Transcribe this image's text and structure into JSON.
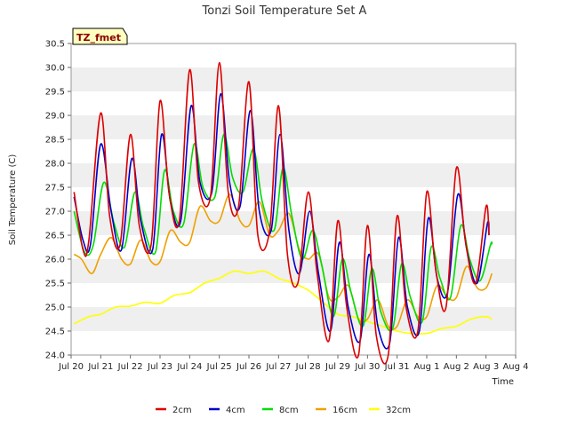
{
  "chart_data": {
    "type": "line",
    "title": "Tonzi Soil Temperature Set A",
    "xlabel": "Time",
    "ylabel": "Soil Temperature (C)",
    "tag": "TZ_fmet",
    "xlim": [
      0,
      15
    ],
    "ylim": [
      24.0,
      30.5
    ],
    "x_ticks": [
      0,
      1,
      2,
      3,
      4,
      5,
      6,
      7,
      8,
      9,
      10,
      11,
      12,
      13,
      14,
      15
    ],
    "x_tick_labels": [
      "Jul 20",
      "Jul 21",
      "Jul 22",
      "Jul 23",
      "Jul 24",
      "Jul 25",
      "Jul 26",
      "Jul 27",
      "Jul 28",
      "Jul 29",
      "Jul 30",
      "Jul 31",
      "Aug 1",
      "Aug 2",
      "Aug 3",
      "Aug 4"
    ],
    "y_ticks": [
      24.0,
      24.5,
      25.0,
      25.5,
      26.0,
      26.5,
      27.0,
      27.5,
      28.0,
      28.5,
      29.0,
      29.5,
      30.0,
      30.5
    ],
    "y_tick_labels": [
      "24.0",
      "24.5",
      "25.0",
      "25.5",
      "26.0",
      "26.5",
      "27.0",
      "27.5",
      "28.0",
      "28.5",
      "29.0",
      "29.5",
      "30.0",
      "30.5"
    ],
    "grid": "horizontal bands",
    "legend_position": "bottom",
    "series": [
      {
        "name": "2cm",
        "color": "#dd0000",
        "x": [
          0.1,
          0.4,
          0.6,
          1.0,
          1.3,
          1.65,
          2.0,
          2.3,
          2.7,
          3.0,
          3.3,
          3.65,
          4.0,
          4.3,
          4.7,
          5.0,
          5.3,
          5.65,
          6.0,
          6.3,
          6.7,
          7.0,
          7.3,
          7.65,
          8.0,
          8.3,
          8.7,
          9.0,
          9.3,
          9.7,
          10.0,
          10.3,
          10.7,
          11.0,
          11.3,
          11.7,
          12.0,
          12.3,
          12.65,
          13.0,
          13.3,
          13.65,
          14.0,
          14.1
        ],
        "y": [
          27.4,
          26.2,
          26.4,
          29.05,
          26.9,
          26.3,
          28.6,
          26.7,
          26.3,
          29.3,
          27.4,
          26.8,
          29.95,
          27.6,
          27.3,
          30.1,
          27.4,
          27.1,
          29.7,
          26.5,
          26.6,
          29.2,
          26.1,
          25.5,
          27.4,
          25.7,
          24.3,
          26.8,
          25.0,
          24.0,
          26.7,
          24.4,
          24.0,
          26.9,
          25.0,
          24.5,
          27.4,
          25.8,
          25.0,
          27.9,
          26.4,
          25.5,
          27.1,
          26.5
        ]
      },
      {
        "name": "4cm",
        "color": "#0000cc",
        "x": [
          0.1,
          0.4,
          0.65,
          1.0,
          1.35,
          1.7,
          2.05,
          2.35,
          2.75,
          3.05,
          3.35,
          3.7,
          4.05,
          4.35,
          4.75,
          5.05,
          5.35,
          5.7,
          6.05,
          6.35,
          6.75,
          7.05,
          7.35,
          7.7,
          8.05,
          8.35,
          8.75,
          9.05,
          9.35,
          9.75,
          10.05,
          10.35,
          10.75,
          11.05,
          11.35,
          11.75,
          12.05,
          12.35,
          12.7,
          13.05,
          13.35,
          13.7,
          14.05,
          14.1
        ],
        "y": [
          27.3,
          26.4,
          26.3,
          28.4,
          27.0,
          26.2,
          28.1,
          26.8,
          26.2,
          28.6,
          27.2,
          26.8,
          29.2,
          27.6,
          27.4,
          29.45,
          27.6,
          27.1,
          29.1,
          27.0,
          26.6,
          28.6,
          26.6,
          25.7,
          27.0,
          25.7,
          24.5,
          26.35,
          25.0,
          24.3,
          26.1,
          24.6,
          24.25,
          26.45,
          25.0,
          24.5,
          26.85,
          25.6,
          25.3,
          27.35,
          26.2,
          25.5,
          26.75,
          26.5
        ]
      },
      {
        "name": "8cm",
        "color": "#00dd00",
        "x": [
          0.1,
          0.45,
          0.75,
          1.1,
          1.45,
          1.8,
          2.15,
          2.45,
          2.85,
          3.15,
          3.45,
          3.8,
          4.15,
          4.45,
          4.85,
          5.15,
          5.45,
          5.8,
          6.15,
          6.45,
          6.85,
          7.15,
          7.45,
          7.8,
          8.15,
          8.45,
          8.85,
          9.15,
          9.45,
          9.85,
          10.15,
          10.45,
          10.85,
          11.15,
          11.45,
          11.85,
          12.15,
          12.45,
          12.8,
          13.15,
          13.45,
          13.8,
          14.15,
          14.2
        ],
        "y": [
          27.0,
          26.15,
          26.3,
          27.6,
          26.75,
          26.25,
          27.4,
          26.65,
          26.15,
          27.85,
          27.0,
          26.75,
          28.4,
          27.5,
          27.3,
          28.6,
          27.7,
          27.4,
          28.3,
          27.2,
          26.6,
          27.9,
          26.9,
          26.0,
          26.6,
          25.9,
          24.8,
          26.0,
          25.3,
          24.6,
          25.8,
          24.9,
          24.55,
          25.9,
          25.2,
          24.7,
          26.25,
          25.6,
          25.2,
          26.7,
          26.0,
          25.55,
          26.3,
          26.3
        ]
      },
      {
        "name": "16cm",
        "color": "#f0a000",
        "x": [
          0.1,
          0.35,
          0.7,
          1.0,
          1.35,
          1.7,
          2.0,
          2.35,
          2.7,
          3.0,
          3.35,
          3.7,
          4.0,
          4.35,
          4.7,
          5.0,
          5.35,
          5.7,
          6.0,
          6.35,
          6.7,
          7.0,
          7.35,
          7.7,
          8.0,
          8.35,
          8.7,
          9.0,
          9.35,
          9.7,
          10.0,
          10.35,
          10.7,
          11.0,
          11.35,
          11.7,
          12.0,
          12.35,
          12.7,
          13.0,
          13.35,
          13.7,
          14.0,
          14.2
        ],
        "y": [
          26.1,
          26.0,
          25.7,
          26.1,
          26.45,
          26.0,
          25.9,
          26.4,
          25.95,
          25.95,
          26.6,
          26.35,
          26.35,
          27.1,
          26.8,
          26.8,
          27.35,
          26.8,
          26.7,
          27.2,
          26.5,
          26.6,
          26.95,
          26.2,
          26.0,
          26.1,
          25.2,
          25.2,
          25.45,
          24.75,
          24.75,
          25.15,
          24.6,
          24.6,
          25.15,
          24.8,
          24.8,
          25.45,
          25.2,
          25.2,
          25.85,
          25.4,
          25.4,
          25.7
        ]
      },
      {
        "name": "32cm",
        "color": "#ffff00",
        "x": [
          0.1,
          0.6,
          1.0,
          1.5,
          2.0,
          2.5,
          3.0,
          3.5,
          4.0,
          4.5,
          5.0,
          5.5,
          6.0,
          6.5,
          7.0,
          7.5,
          8.0,
          8.5,
          9.0,
          9.5,
          10.0,
          10.5,
          11.0,
          11.5,
          12.0,
          12.5,
          13.0,
          13.5,
          14.0,
          14.2
        ],
        "y": [
          24.65,
          24.8,
          24.85,
          25.0,
          25.02,
          25.1,
          25.08,
          25.25,
          25.3,
          25.5,
          25.6,
          25.75,
          25.7,
          25.75,
          25.6,
          25.5,
          25.35,
          25.1,
          24.85,
          24.8,
          24.7,
          24.6,
          24.5,
          24.45,
          24.45,
          24.55,
          24.6,
          24.75,
          24.8,
          24.75
        ]
      }
    ]
  }
}
